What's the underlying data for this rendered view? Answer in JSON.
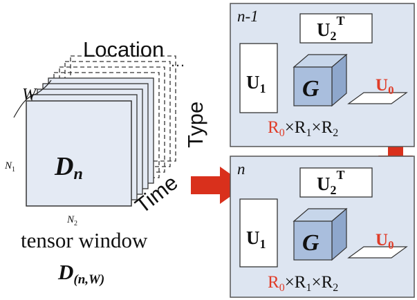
{
  "colors": {
    "panel_fill": "#dde5f1",
    "panel_stroke": "#555555",
    "tensor_fill": "#e4eaf4",
    "cube_front": "#a9bedd",
    "cube_top": "#c7d6ea",
    "cube_side": "#8ea7cc",
    "arrow_red": "#d9301c",
    "accent_red": "#e03c28"
  },
  "left": {
    "label_location": "Location",
    "label_location_dots": "…",
    "label_type": "Type",
    "label_time": "Time",
    "label_w": "W",
    "label_n1": "N",
    "label_n1_sub": "1",
    "label_n2": "N",
    "label_n2_sub": "2",
    "center_label": "D",
    "center_label_sub": "n",
    "caption": "tensor window",
    "caption_symbol": "D",
    "caption_symbol_sub": "(n,W)"
  },
  "panels": [
    {
      "label": "n-1",
      "u2": "U",
      "u2_sub": "2",
      "u2_sup": "T",
      "u1": "U",
      "u1_sub": "1",
      "core": "G",
      "u0": "U",
      "u0_sub": "0",
      "rank_r0": "R",
      "rank_r0_sub": "0",
      "rank_r1": "R",
      "rank_r1_sub": "1",
      "rank_r2": "R",
      "rank_r2_sub": "2",
      "times": "×"
    },
    {
      "label": "n",
      "u2": "U",
      "u2_sub": "2",
      "u2_sup": "T",
      "u1": "U",
      "u1_sub": "1",
      "core": "G",
      "u0": "U",
      "u0_sub": "0",
      "rank_r0": "R",
      "rank_r0_sub": "0",
      "rank_r1": "R",
      "rank_r1_sub": "1",
      "rank_r2": "R",
      "rank_r2_sub": "2",
      "times": "×"
    }
  ]
}
